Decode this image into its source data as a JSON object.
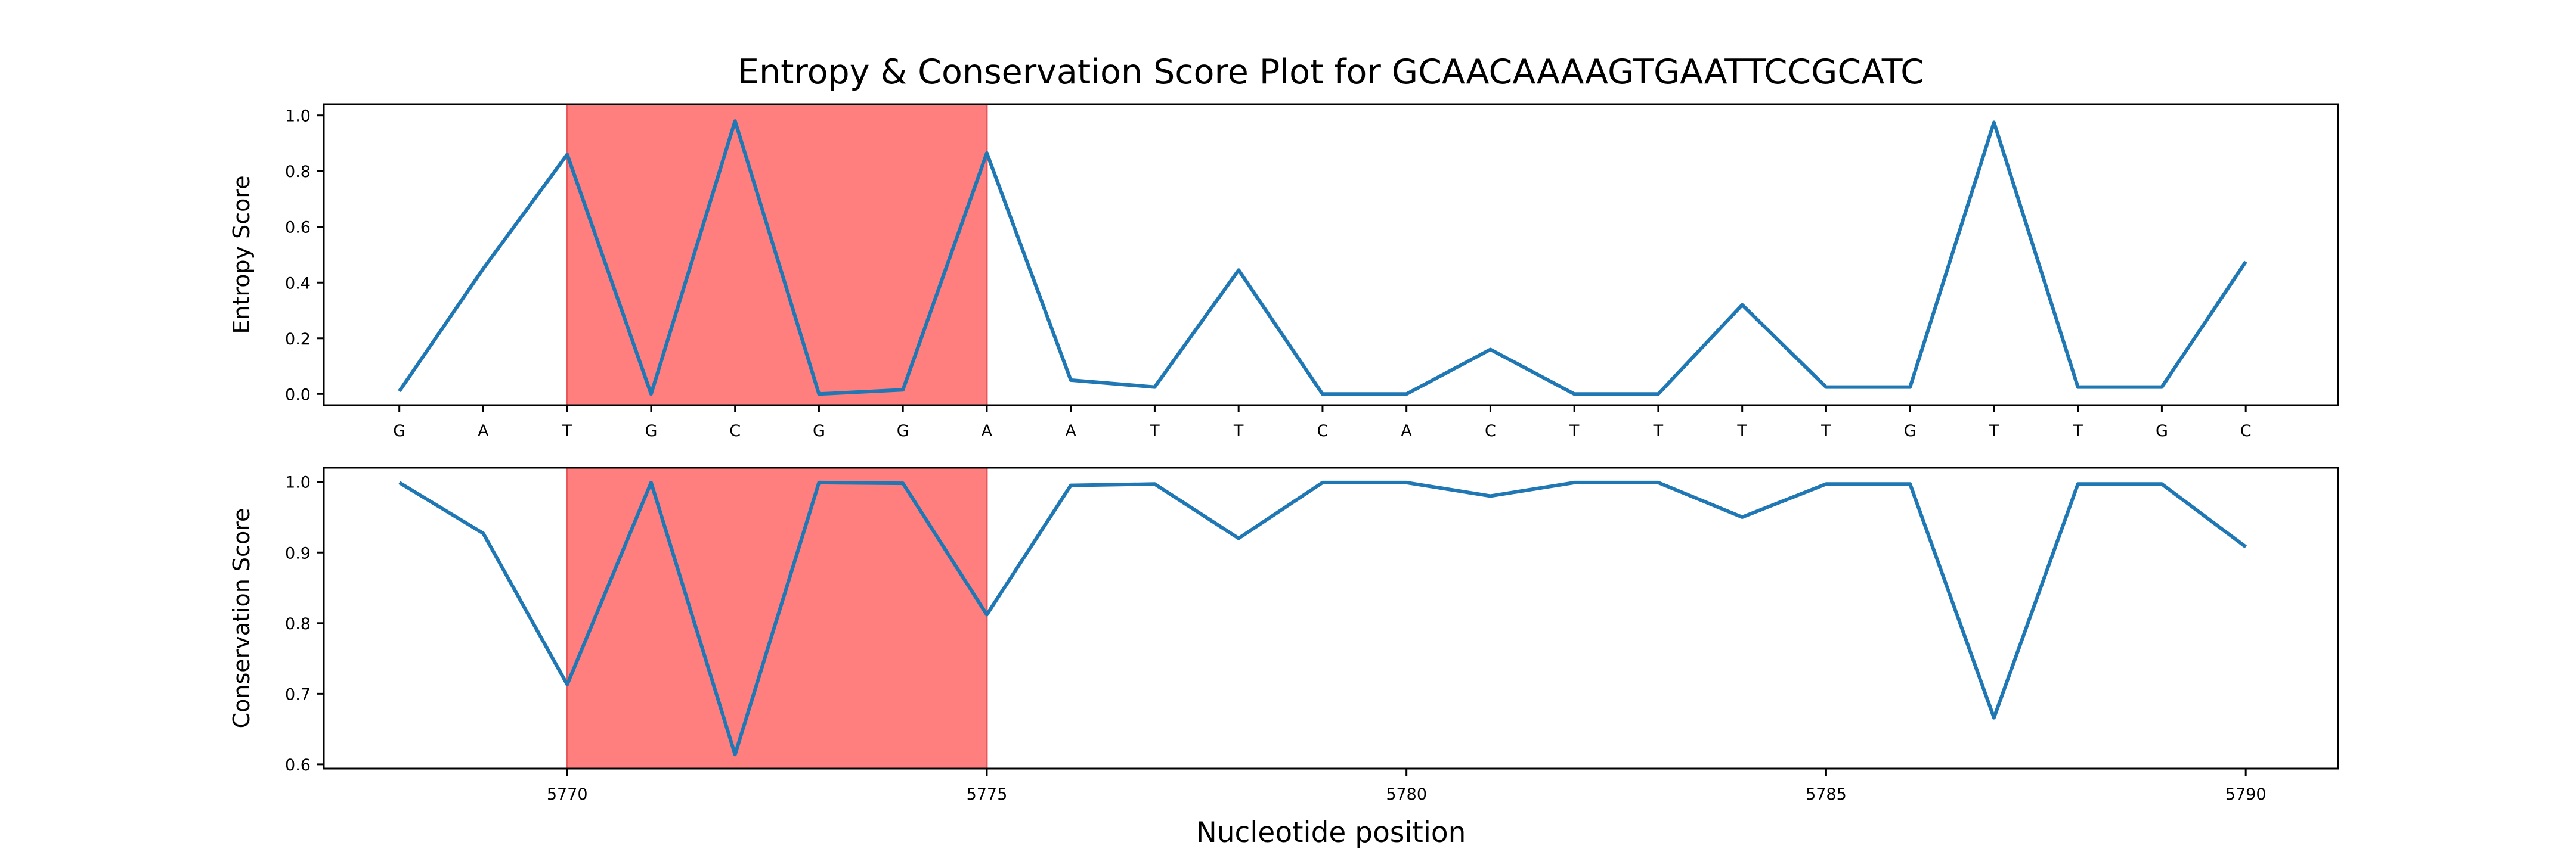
{
  "chart_data": {
    "title": "Entropy & Conservation Score Plot for GCAACAAAAGTGAATTCCGCATC",
    "xlabel": "Nucleotide position",
    "type": "line",
    "x": [
      5768,
      5769,
      5770,
      5771,
      5772,
      5773,
      5774,
      5775,
      5776,
      5777,
      5778,
      5779,
      5780,
      5781,
      5782,
      5783,
      5784,
      5785,
      5786,
      5787,
      5788,
      5789,
      5790
    ],
    "xlim": [
      5767.1,
      5791.1
    ],
    "highlight_region": [
      5770,
      5775
    ],
    "colors": {
      "line": "#1f77b4",
      "highlight": "#ff7f7f",
      "highlight_edge": "#e8585a"
    },
    "panels": [
      {
        "ylabel": "Entropy Score",
        "ylim": [
          -0.04,
          1.04
        ],
        "yticks": [
          "0.0",
          "0.2",
          "0.4",
          "0.6",
          "0.8",
          "1.0"
        ],
        "ytick_values": [
          0,
          0.2,
          0.4,
          0.6,
          0.8,
          1.0
        ],
        "xtick_labels": [
          "G",
          "A",
          "T",
          "G",
          "C",
          "G",
          "G",
          "A",
          "A",
          "T",
          "T",
          "C",
          "A",
          "C",
          "T",
          "T",
          "T",
          "T",
          "G",
          "T",
          "T",
          "G",
          "C"
        ],
        "values": [
          0.01,
          0.45,
          0.86,
          0.0,
          0.98,
          0.0,
          0.015,
          0.865,
          0.05,
          0.025,
          0.445,
          0.0,
          0.0,
          0.16,
          0.0,
          0.0,
          0.32,
          0.025,
          0.025,
          0.975,
          0.025,
          0.025,
          0.475
        ]
      },
      {
        "ylabel": "Conservation Score",
        "ylim": [
          0.594,
          1.02
        ],
        "yticks": [
          "0.6",
          "0.7",
          "0.8",
          "0.9",
          "1.0"
        ],
        "ytick_values": [
          0.6,
          0.7,
          0.8,
          0.9,
          1.0
        ],
        "xtick_labels": [
          "5770",
          "5775",
          "5780",
          "5785",
          "5790"
        ],
        "xtick_values": [
          5770,
          5775,
          5780,
          5785,
          5790
        ],
        "values": [
          0.999,
          0.927,
          0.713,
          0.999,
          0.614,
          0.999,
          0.998,
          0.812,
          0.995,
          0.997,
          0.92,
          0.999,
          0.999,
          0.98,
          0.999,
          0.999,
          0.95,
          0.997,
          0.997,
          0.666,
          0.997,
          0.997,
          0.908
        ]
      }
    ]
  }
}
